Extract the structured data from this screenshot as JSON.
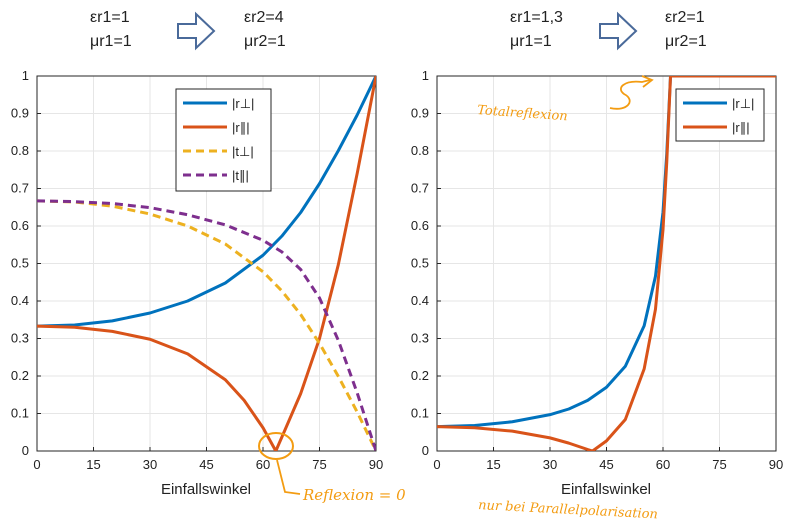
{
  "media_params": {
    "left": {
      "from": [
        "εr1=1",
        "μr1=1"
      ],
      "to": [
        "εr2=4",
        "μr2=1"
      ]
    },
    "right": {
      "from": [
        "εr1=1,3",
        "μr1=1"
      ],
      "to": [
        "εr2=1",
        "μr2=1"
      ]
    }
  },
  "annotations": {
    "total_reflection": "Totalreflexion",
    "brewster": "Reflexion = 0",
    "brewster_note": "nur bei Parallelpolarisation"
  },
  "colors": {
    "blue": "#0072bd",
    "orange": "#d95319",
    "yellow": "#edb120",
    "purple": "#7e2f8e",
    "note": "#f39c12",
    "arrow": "#4a6a9a"
  },
  "chart_data": [
    {
      "type": "line",
      "title": "",
      "xlabel": "Einfallswinkel",
      "ylabel": "",
      "xlim": [
        0,
        90
      ],
      "ylim": [
        0,
        1
      ],
      "xticks": [
        "0",
        "15",
        "30",
        "45",
        "60",
        "75",
        "90"
      ],
      "yticks": [
        "0",
        "0.1",
        "0.2",
        "0.3",
        "0.4",
        "0.5",
        "0.6",
        "0.7",
        "0.8",
        "0.9",
        "1"
      ],
      "grid": true,
      "legend_position": "top-right",
      "series": [
        {
          "name": "|r⊥|",
          "color": "#0072bd",
          "dash": false,
          "x": [
            0,
            10,
            20,
            30,
            40,
            50,
            60,
            65,
            70,
            75,
            80,
            85,
            90
          ],
          "y": [
            0.333,
            0.336,
            0.347,
            0.368,
            0.4,
            0.448,
            0.522,
            0.573,
            0.636,
            0.713,
            0.801,
            0.896,
            1.0
          ]
        },
        {
          "name": "|r∥|",
          "color": "#d95319",
          "dash": false,
          "x": [
            0,
            10,
            20,
            30,
            40,
            50,
            55,
            60,
            63.4,
            66,
            70,
            75,
            80,
            85,
            90
          ],
          "y": [
            0.333,
            0.33,
            0.319,
            0.298,
            0.259,
            0.19,
            0.135,
            0.062,
            0.0,
            0.06,
            0.153,
            0.3,
            0.497,
            0.74,
            1.0
          ]
        },
        {
          "name": "|t⊥|",
          "color": "#edb120",
          "dash": true,
          "x": [
            0,
            10,
            20,
            30,
            40,
            50,
            60,
            65,
            70,
            75,
            80,
            85,
            90
          ],
          "y": [
            0.667,
            0.664,
            0.653,
            0.632,
            0.6,
            0.552,
            0.478,
            0.427,
            0.364,
            0.287,
            0.199,
            0.104,
            0.0
          ]
        },
        {
          "name": "|t∥|",
          "color": "#7e2f8e",
          "dash": true,
          "x": [
            0,
            10,
            20,
            30,
            40,
            50,
            60,
            65,
            70,
            75,
            80,
            85,
            90
          ],
          "y": [
            0.667,
            0.665,
            0.66,
            0.649,
            0.63,
            0.603,
            0.562,
            0.531,
            0.484,
            0.408,
            0.295,
            0.155,
            0.0
          ]
        }
      ]
    },
    {
      "type": "line",
      "title": "",
      "xlabel": "Einfallswinkel",
      "ylabel": "",
      "xlim": [
        0,
        90
      ],
      "ylim": [
        0,
        1
      ],
      "xticks": [
        "0",
        "15",
        "30",
        "45",
        "60",
        "75",
        "90"
      ],
      "yticks": [
        "0",
        "0.1",
        "0.2",
        "0.3",
        "0.4",
        "0.5",
        "0.6",
        "0.7",
        "0.8",
        "0.9",
        "1"
      ],
      "grid": true,
      "legend_position": "top-right",
      "series": [
        {
          "name": "|r⊥|",
          "color": "#0072bd",
          "dash": false,
          "x": [
            0,
            10,
            20,
            30,
            35,
            40,
            45,
            50,
            55,
            58,
            60,
            61,
            62,
            90
          ],
          "y": [
            0.065,
            0.068,
            0.078,
            0.097,
            0.112,
            0.135,
            0.17,
            0.226,
            0.334,
            0.466,
            0.637,
            0.793,
            1.0,
            1.0
          ]
        },
        {
          "name": "|r∥|",
          "color": "#d95319",
          "dash": false,
          "x": [
            0,
            10,
            20,
            30,
            35,
            40,
            41.3,
            45,
            50,
            55,
            58,
            60,
            61,
            62,
            90
          ],
          "y": [
            0.065,
            0.062,
            0.053,
            0.035,
            0.021,
            0.004,
            0.0,
            0.027,
            0.084,
            0.219,
            0.378,
            0.59,
            0.771,
            1.0,
            1.0
          ]
        }
      ]
    }
  ]
}
